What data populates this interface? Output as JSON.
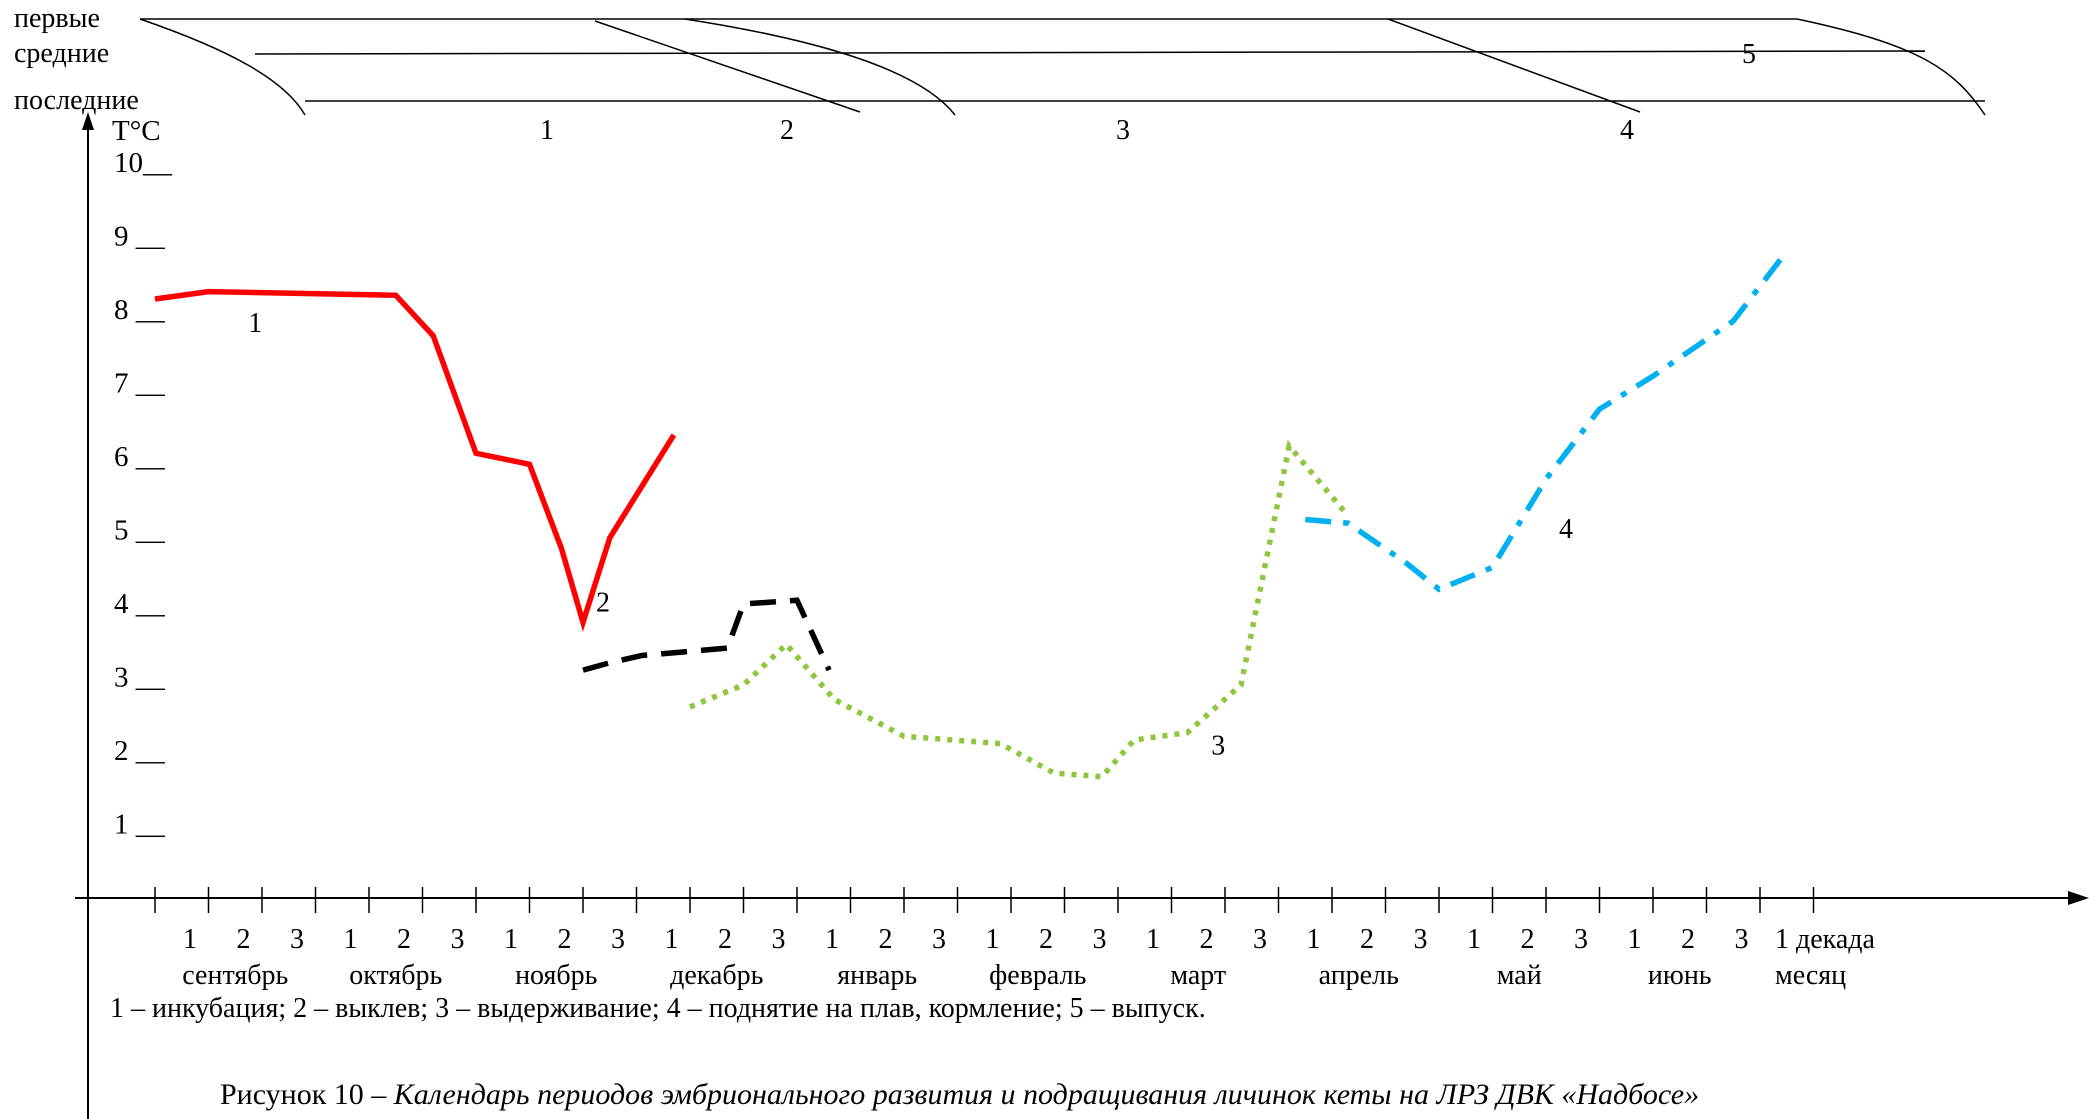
{
  "chart_data": {
    "type": "line",
    "ylabel": "T°C",
    "y_ticks": [
      "1 __",
      "2 __",
      "3 __",
      "4 __",
      "5 __",
      "6 __",
      "7 __",
      "8 __",
      "9 __",
      "10__"
    ],
    "ylim": [
      0,
      10
    ],
    "x_unit": "декада",
    "x_month_label": "месяц",
    "months": [
      "сентябрь",
      "октябрь",
      "ноябрь",
      "декабрь",
      "январь",
      "февраль",
      "март",
      "апрель",
      "май",
      "июнь"
    ],
    "decades": [
      "1",
      "2",
      "3"
    ],
    "series": [
      {
        "label": "1",
        "color": "#ff0000",
        "style": "solid",
        "x": [
          0,
          1,
          4.5,
          5.2,
          6,
          7,
          7.6,
          8,
          8.5,
          9.7
        ],
        "y": [
          8.15,
          8.25,
          8.2,
          7.65,
          6.05,
          5.9,
          4.75,
          3.75,
          4.9,
          6.3
        ]
      },
      {
        "label": "2",
        "color": "#000000",
        "style": "dashed",
        "x": [
          8,
          8.5,
          9.1,
          10.7,
          11,
          12,
          12.6
        ],
        "y": [
          3.1,
          3.2,
          3.3,
          3.4,
          4,
          4.05,
          3.1
        ]
      },
      {
        "label": "3",
        "color": "#8dc63f",
        "style": "dotted",
        "x": [
          10,
          11,
          11.8,
          12.7,
          14,
          15.8,
          16.8,
          17.7,
          18.3,
          19.3,
          20.3,
          21.2,
          22.3
        ],
        "y": [
          2.6,
          2.9,
          3.45,
          2.7,
          2.2,
          2.1,
          1.7,
          1.65,
          2.15,
          2.25,
          2.9,
          6.15,
          5.2
        ]
      },
      {
        "label": "4",
        "color": "#00b0f0",
        "style": "dash-dot",
        "x": [
          21.5,
          22.3,
          23.4,
          24,
          25,
          26,
          27,
          28,
          29.5,
          30.5
        ],
        "y": [
          5.15,
          5.1,
          4.55,
          4.2,
          4.5,
          5.7,
          6.65,
          7.1,
          7.85,
          8.8
        ]
      }
    ],
    "top_bands": {
      "row_labels": [
        "первые",
        "средние",
        "последние"
      ],
      "stage_labels": [
        "1",
        "2",
        "3",
        "4",
        "5"
      ]
    },
    "legend": "1 – инкубация; 2 – выклев; 3 – выдерживание; 4 – поднятие на плав, кормление; 5 – выпуск.",
    "caption_prefix": "Рисунок 10 –",
    "caption_text": "Календарь периодов эмбрионального развития и подращивания личинок кеты на ЛРЗ ДВК «Надбосе»"
  }
}
